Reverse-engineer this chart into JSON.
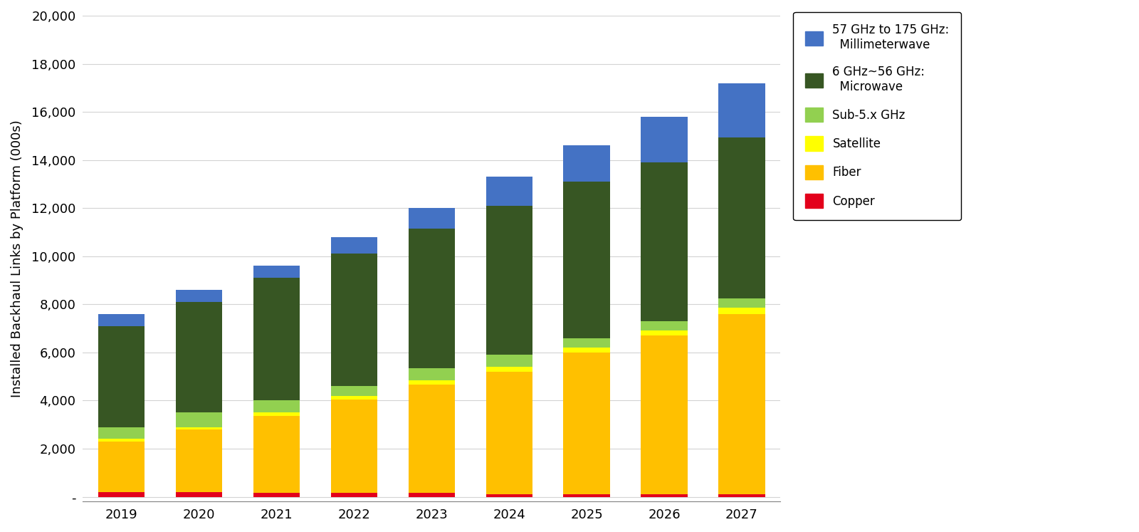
{
  "years": [
    "2019",
    "2020",
    "2021",
    "2022",
    "2023",
    "2024",
    "2025",
    "2026",
    "2027"
  ],
  "copper": [
    200,
    200,
    150,
    150,
    150,
    100,
    100,
    100,
    100
  ],
  "fiber": [
    2100,
    2600,
    3200,
    3900,
    4500,
    5100,
    5900,
    6600,
    7500
  ],
  "satellite": [
    100,
    100,
    150,
    150,
    200,
    200,
    200,
    200,
    250
  ],
  "sub5": [
    500,
    600,
    500,
    400,
    500,
    500,
    400,
    400,
    400
  ],
  "microwave": [
    4200,
    4600,
    5100,
    5500,
    5800,
    6200,
    6500,
    6600,
    6700
  ],
  "mmwave": [
    500,
    500,
    500,
    700,
    850,
    1200,
    1500,
    1900,
    2250
  ],
  "colors": {
    "copper": "#e3001b",
    "fiber": "#ffc000",
    "satellite": "#ffff00",
    "sub5": "#92d050",
    "microwave": "#375623",
    "mmwave": "#4472c4"
  },
  "ylabel": "Installed Backhaul Links by Platform (000s)",
  "ylim": [
    -200,
    20000
  ],
  "yticks": [
    0,
    2000,
    4000,
    6000,
    8000,
    10000,
    12000,
    14000,
    16000,
    18000,
    20000
  ],
  "ytick_labels": [
    "-",
    "2,000",
    "4,000",
    "6,000",
    "8,000",
    "10,000",
    "12,000",
    "14,000",
    "16,000",
    "18,000",
    "20,000"
  ],
  "legend_labels": [
    "57 GHz to 175 GHz:\n  Millimeterwave",
    "6 GHz~56 GHz:\n  Microwave",
    "Sub-5.x GHz",
    "Satellite",
    "Fiber",
    "Copper"
  ],
  "bar_width": 0.6,
  "figsize": [
    16.0,
    7.47
  ],
  "dpi": 100
}
